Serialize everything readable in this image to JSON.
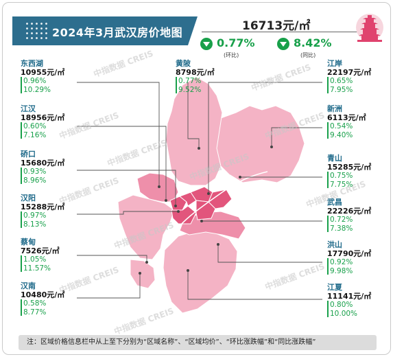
{
  "title": "2024年3月武汉房价地图",
  "summary": {
    "avg_price": "16713元/㎡",
    "mom_change": "0.77%",
    "mom_label": "(环比)",
    "yoy_change": "8.42%",
    "yoy_label": "(同比)"
  },
  "watermark": "中指数据 CREIS",
  "colors": {
    "title_bg": "#2d6e8e",
    "down": "#18a04a",
    "name": "#1f6a8a",
    "map_light": "#f4b3c5",
    "map_mid": "#ee8faa",
    "map_dark": "#e2557c"
  },
  "districts": [
    {
      "name": "东西湖",
      "price": "10955元/㎡",
      "mom": "0.96%",
      "yoy": "10.29%"
    },
    {
      "name": "江汉",
      "price": "18956元/㎡",
      "mom": "0.60%",
      "yoy": "7.16%"
    },
    {
      "name": "硚口",
      "price": "15680元/㎡",
      "mom": "0.93%",
      "yoy": "8.96%"
    },
    {
      "name": "汉阳",
      "price": "15288元/㎡",
      "mom": "0.97%",
      "yoy": "8.13%"
    },
    {
      "name": "蔡甸",
      "price": "7526元/㎡",
      "mom": "1.05%",
      "yoy": "11.57%"
    },
    {
      "name": "汉南",
      "price": "10480元/㎡",
      "mom": "0.58%",
      "yoy": "8.77%"
    },
    {
      "name": "黄陂",
      "price": "8798元/㎡",
      "mom": "0.77%",
      "yoy": "9.52%"
    },
    {
      "name": "江岸",
      "price": "22197元/㎡",
      "mom": "0.65%",
      "yoy": "7.95%"
    },
    {
      "name": "新洲",
      "price": "6113元/㎡",
      "mom": "0.54%",
      "yoy": "9.40%"
    },
    {
      "name": "青山",
      "price": "15285元/㎡",
      "mom": "0.75%",
      "yoy": "7.75%"
    },
    {
      "name": "武昌",
      "price": "22226元/㎡",
      "mom": "0.72%",
      "yoy": "7.38%"
    },
    {
      "name": "洪山",
      "price": "17790元/㎡",
      "mom": "0.92%",
      "yoy": "9.98%"
    },
    {
      "name": "江夏",
      "price": "11141元/㎡",
      "mom": "0.80%",
      "yoy": "10.00%"
    }
  ],
  "note": "注：区域价格信息栏中从上至下分别为“区域名称”、“区域均价”、“环比涨跌幅”和“同比涨跌幅”"
}
